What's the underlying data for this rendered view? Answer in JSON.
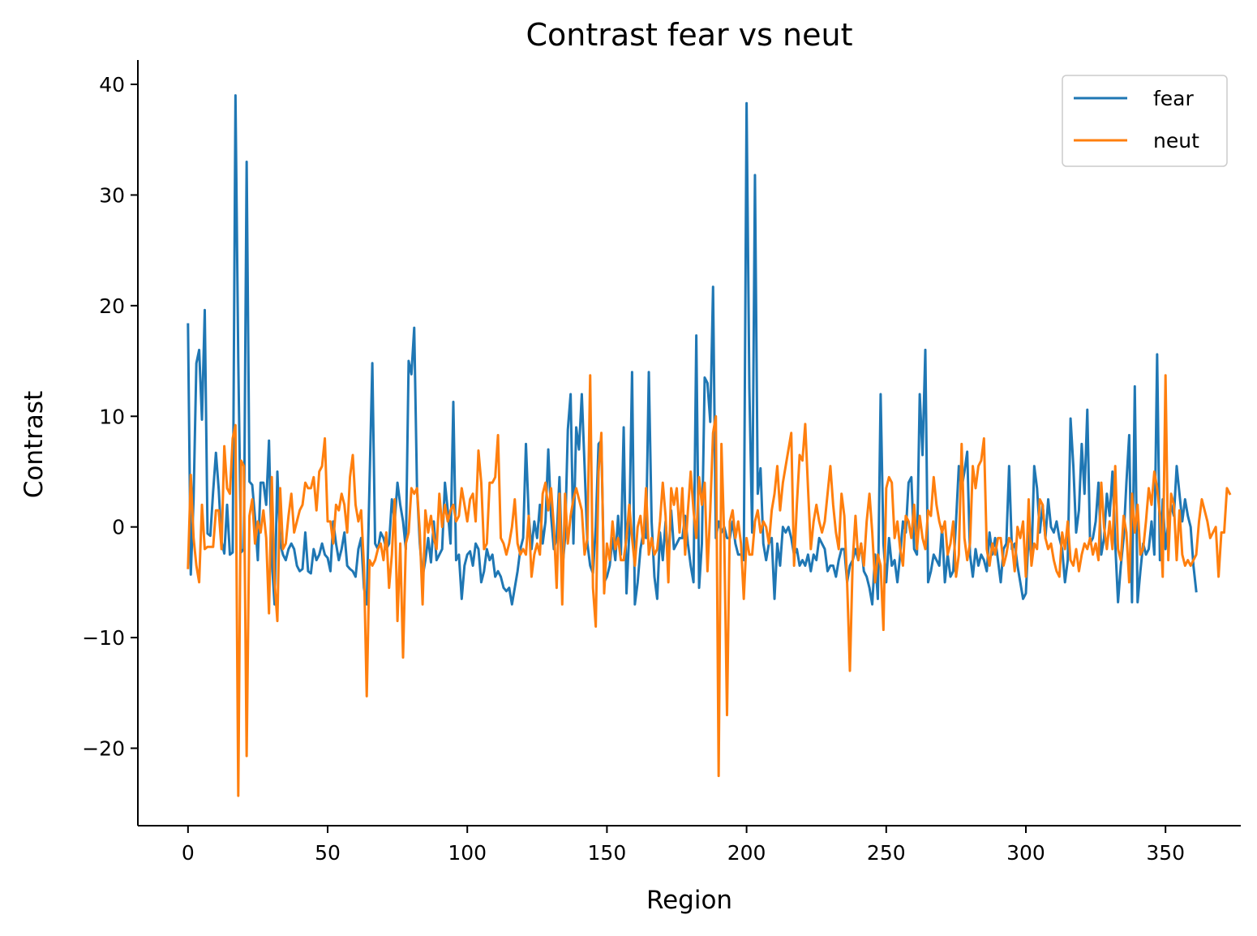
{
  "chart_data": {
    "type": "line",
    "title": "Contrast  fear vs neut",
    "xlabel": "Region",
    "ylabel": "Contrast",
    "xlim": [
      -17.95,
      376.95
    ],
    "ylim": [
      -27.0,
      42.2
    ],
    "xticks": [
      0,
      50,
      100,
      150,
      200,
      250,
      300,
      350
    ],
    "yticks": [
      -20,
      -10,
      0,
      10,
      20,
      30,
      40
    ],
    "xtick_labels": [
      "0",
      "50",
      "100",
      "150",
      "200",
      "250",
      "300",
      "350"
    ],
    "ytick_labels": [
      "−20",
      "−10",
      "0",
      "10",
      "20",
      "30",
      "40"
    ],
    "grid": false,
    "legend_position": "top-right",
    "series": [
      {
        "name": "fear",
        "color": "#1f77b4",
        "values": [
          18.3,
          -4.3,
          2.5,
          14.8,
          16.0,
          9.7,
          19.6,
          -0.6,
          -0.8,
          3.2,
          6.7,
          3.4,
          -1.3,
          -2.4,
          2.0,
          -2.5,
          -2.3,
          39.0,
          15.0,
          -2.3,
          -2.0,
          33.0,
          4.1,
          3.8,
          0.8,
          -3.0,
          4.0,
          4.0,
          2.0,
          7.8,
          -3.0,
          -7.0,
          5.0,
          -1.5,
          -2.5,
          -3.0,
          -2.0,
          -1.5,
          -2.0,
          -3.5,
          -4.0,
          -3.8,
          -0.5,
          -4.0,
          -4.2,
          -2.0,
          -3.0,
          -2.5,
          -1.5,
          -2.5,
          -2.8,
          -4.0,
          0.5,
          -1.5,
          -3.0,
          -2.0,
          -0.5,
          -3.5,
          -3.8,
          -4.0,
          -4.5,
          -2.0,
          -1.0,
          -5.5,
          -7.0,
          4.0,
          14.8,
          -1.5,
          -2.0,
          -0.5,
          -1.0,
          -2.0,
          -1.5,
          2.5,
          0.5,
          4.0,
          2.0,
          0.5,
          -2.0,
          15.0,
          13.8,
          18.0,
          3.5,
          -1.5,
          -4.5,
          -3.0,
          -1.0,
          -3.2,
          0.5,
          -3.0,
          -2.5,
          -2.0,
          4.0,
          1.5,
          -1.5,
          11.3,
          -3.0,
          -2.5,
          -6.5,
          -3.5,
          -2.5,
          -2.2,
          -3.5,
          -1.5,
          -2.0,
          -5.0,
          -4.0,
          -2.0,
          -3.0,
          -2.5,
          -4.5,
          -4.0,
          -4.5,
          -5.5,
          -5.8,
          -5.5,
          -7.0,
          -5.5,
          -4.0,
          -2.0,
          -1.0,
          7.5,
          1.0,
          -2.0,
          0.5,
          -1.0,
          2.0,
          -1.5,
          0.5,
          7.0,
          1.0,
          -2.0,
          -1.0,
          4.5,
          -4.0,
          -1.0,
          8.8,
          12.0,
          -1.5,
          9.0,
          7.0,
          12.0,
          5.5,
          -1.5,
          -3.5,
          -4.2,
          0.0,
          7.5,
          7.8,
          -5.0,
          -4.5,
          -3.5,
          -1.0,
          -3.0,
          1.0,
          -2.5,
          9.0,
          -6.0,
          -0.5,
          14.0,
          -7.0,
          -5.0,
          -2.0,
          -0.5,
          -1.0,
          14.0,
          0.5,
          -4.5,
          -6.5,
          -0.5,
          -3.0,
          0.5,
          -3.0,
          1.5,
          -2.0,
          -1.5,
          -1.0,
          -1.0,
          1.0,
          -1.5,
          -3.5,
          -5.0,
          17.3,
          -5.5,
          -1.5,
          13.5,
          13.0,
          9.5,
          21.7,
          -1.0,
          0.5,
          -0.5,
          0.0,
          -1.0,
          -1.0,
          0.5,
          -1.5,
          -2.5,
          -2.5,
          -3.0,
          38.3,
          12.5,
          -0.5,
          31.8,
          3.0,
          5.3,
          -1.5,
          -3.0,
          -1.5,
          -1.0,
          -6.5,
          -1.5,
          -3.5,
          0.0,
          -0.5,
          0.0,
          -1.0,
          -2.5,
          -2.0,
          -3.5,
          -3.0,
          -3.5,
          -2.5,
          -4.0,
          -2.5,
          -3.0,
          -1.0,
          -1.5,
          -2.0,
          -4.0,
          -3.5,
          -3.5,
          -4.5,
          -3.0,
          -2.0,
          -2.0,
          -5.0,
          -3.5,
          -3.0,
          -2.0,
          -3.0,
          -1.5,
          -4.0,
          -4.5,
          -5.5,
          -7.0,
          -2.5,
          -6.5,
          12.0,
          -1.5,
          -5.0,
          -1.0,
          -3.5,
          -3.0,
          -5.0,
          -2.5,
          0.5,
          -0.5,
          4.0,
          4.5,
          -2.0,
          -2.5,
          12.0,
          6.5,
          16.0,
          -5.0,
          -4.0,
          -2.5,
          -3.0,
          -3.5,
          0.0,
          -5.0,
          -2.5,
          -4.5,
          -4.0,
          0.5,
          5.5,
          3.5,
          5.0,
          6.8,
          -2.5,
          -4.5,
          -2.0,
          -3.5,
          -2.5,
          -3.0,
          -4.0,
          -0.5,
          -2.5,
          -1.0,
          -3.0,
          -5.0,
          -2.0,
          -1.5,
          5.5,
          -2.0,
          -1.5,
          -3.5,
          -5.0,
          -6.5,
          -6.0,
          -0.5,
          -3.0,
          5.5,
          3.5,
          -0.5,
          2.0,
          -1.0,
          2.5,
          0.0,
          -0.5,
          0.5,
          -1.0,
          -2.0,
          -5.0,
          -3.0,
          9.8,
          5.5,
          -0.5,
          1.5,
          7.5,
          3.0,
          10.6,
          -1.5,
          -1.0,
          0.5,
          4.0,
          -2.5,
          -1.0,
          3.0,
          1.0,
          5.0,
          -1.5,
          -6.8,
          -3.5,
          -1.0,
          4.0,
          8.3,
          -6.8,
          12.7,
          -6.8,
          -4.0,
          -1.5,
          -2.5,
          -2.0,
          0.5,
          -2.5,
          15.6,
          -3.0,
          2.5,
          -2.0,
          0.5,
          2.0,
          1.0,
          5.5,
          3.0,
          0.5,
          2.5,
          1.0,
          0.0,
          -3.5,
          -5.8
        ]
      },
      {
        "name": "neut",
        "color": "#ff7f0e",
        "values": [
          -3.7,
          4.7,
          -1.0,
          -3.5,
          -5.0,
          2.0,
          -2.0,
          -1.8,
          -1.8,
          -1.8,
          1.5,
          1.5,
          -2.0,
          7.3,
          3.5,
          3.0,
          8.0,
          9.2,
          -24.3,
          6.0,
          5.5,
          -20.7,
          1.0,
          2.5,
          -1.5,
          0.5,
          -0.5,
          1.5,
          -1.0,
          -7.8,
          4.5,
          -5.0,
          -8.5,
          3.5,
          -2.0,
          -1.5,
          1.0,
          3.0,
          -0.5,
          0.5,
          1.5,
          2.0,
          4.0,
          3.5,
          3.5,
          4.5,
          1.5,
          5.0,
          5.5,
          8.0,
          0.5,
          0.5,
          -1.5,
          2.0,
          1.5,
          3.0,
          2.0,
          -0.5,
          4.5,
          6.5,
          2.0,
          0.5,
          1.5,
          -3.5,
          -15.3,
          -3.0,
          -3.5,
          -3.0,
          -2.0,
          -1.5,
          -3.0,
          -0.5,
          -5.5,
          -2.5,
          2.5,
          -8.5,
          -1.5,
          -11.8,
          -1.5,
          -0.5,
          3.5,
          3.0,
          3.5,
          -0.5,
          -7.0,
          1.5,
          -0.5,
          1.0,
          -1.0,
          -2.0,
          3.0,
          0.0,
          2.0,
          0.5,
          1.5,
          2.0,
          0.5,
          1.0,
          3.5,
          2.0,
          0.5,
          2.5,
          3.0,
          0.5,
          6.9,
          4.0,
          -2.0,
          -1.5,
          4.0,
          4.0,
          4.5,
          8.3,
          -1.0,
          -1.5,
          -2.5,
          -1.5,
          0.0,
          2.5,
          -1.5,
          -2.5,
          -2.0,
          -2.5,
          1.0,
          -4.5,
          -2.5,
          -1.5,
          -2.5,
          3.0,
          4.0,
          1.5,
          3.5,
          0.0,
          -5.5,
          3.0,
          -7.0,
          3.0,
          -1.5,
          1.0,
          2.5,
          3.5,
          2.5,
          1.5,
          -2.5,
          -1.0,
          13.7,
          -5.5,
          -9.0,
          5.0,
          8.5,
          -6.0,
          -1.5,
          -3.0,
          0.5,
          -2.0,
          -1.0,
          -3.0,
          -3.0,
          -1.0,
          2.0,
          -1.0,
          -3.5,
          0.0,
          1.0,
          -1.5,
          3.5,
          -2.5,
          -1.0,
          -2.5,
          -2.0,
          0.5,
          4.0,
          1.0,
          -5.0,
          3.5,
          2.0,
          3.5,
          -0.5,
          3.5,
          -2.5,
          1.5,
          5.0,
          1.5,
          -1.0,
          4.5,
          2.0,
          4.0,
          -4.0,
          1.5,
          8.5,
          10.0,
          -22.5,
          7.5,
          -1.0,
          -17.0,
          0.5,
          1.5,
          -1.0,
          0.5,
          -1.5,
          -6.5,
          -1.0,
          -2.5,
          -2.5,
          0.5,
          1.5,
          -0.5,
          0.5,
          0.0,
          -1.5,
          1.5,
          3.0,
          5.5,
          1.5,
          4.0,
          5.5,
          7.0,
          8.5,
          -3.5,
          2.0,
          6.5,
          6.0,
          9.3,
          3.5,
          -2.0,
          0.5,
          2.0,
          0.5,
          -0.5,
          0.5,
          3.0,
          5.5,
          2.0,
          -0.5,
          -2.0,
          3.0,
          1.0,
          -5.0,
          -13.0,
          -3.0,
          1.0,
          -3.0,
          -1.5,
          -3.5,
          0.5,
          3.0,
          -0.5,
          -5.0,
          -2.5,
          -3.5,
          -9.3,
          3.5,
          4.5,
          4.0,
          -1.0,
          0.5,
          -2.0,
          -3.5,
          1.0,
          0.5,
          -1.0,
          2.0,
          -2.0,
          1.0,
          -1.0,
          -2.0,
          1.5,
          1.0,
          4.5,
          2.0,
          0.5,
          -0.5,
          0.5,
          -2.5,
          -1.5,
          0.5,
          -4.5,
          -2.5,
          7.5,
          -1.0,
          -3.0,
          -1.5,
          5.5,
          3.5,
          5.5,
          6.0,
          8.0,
          -2.0,
          -3.5,
          -1.5,
          -2.5,
          -1.0,
          -1.0,
          -3.5,
          -2.5,
          -1.0,
          -1.5,
          -4.0,
          0.0,
          -1.0,
          0.5,
          -4.5,
          2.5,
          -3.5,
          -1.5,
          -2.0,
          2.5,
          2.0,
          -1.0,
          -2.0,
          -1.5,
          -3.0,
          -4.0,
          -4.5,
          -0.5,
          -2.0,
          0.5,
          -3.0,
          -3.5,
          -2.0,
          -4.0,
          -2.5,
          -1.5,
          -2.0,
          -1.0,
          -2.5,
          -1.5,
          -3.0,
          4.0,
          0.0,
          -2.0,
          0.5,
          -2.0,
          5.5,
          -2.0,
          -3.0,
          1.0,
          -0.5,
          -5.0,
          3.0,
          -0.5,
          2.0,
          -2.5,
          -2.0,
          0.5,
          3.5,
          2.0,
          5.0,
          3.5,
          1.0,
          -4.5,
          13.7,
          -3.0,
          3.0,
          2.0,
          -3.0,
          1.5,
          -2.5,
          -3.5,
          -3.0,
          -3.5,
          -3.0,
          -2.5,
          0.5,
          2.5,
          1.5,
          0.5,
          -1.0,
          -0.5,
          0.0,
          -4.5,
          -0.5,
          -0.5,
          3.5,
          3.0
        ]
      }
    ]
  }
}
